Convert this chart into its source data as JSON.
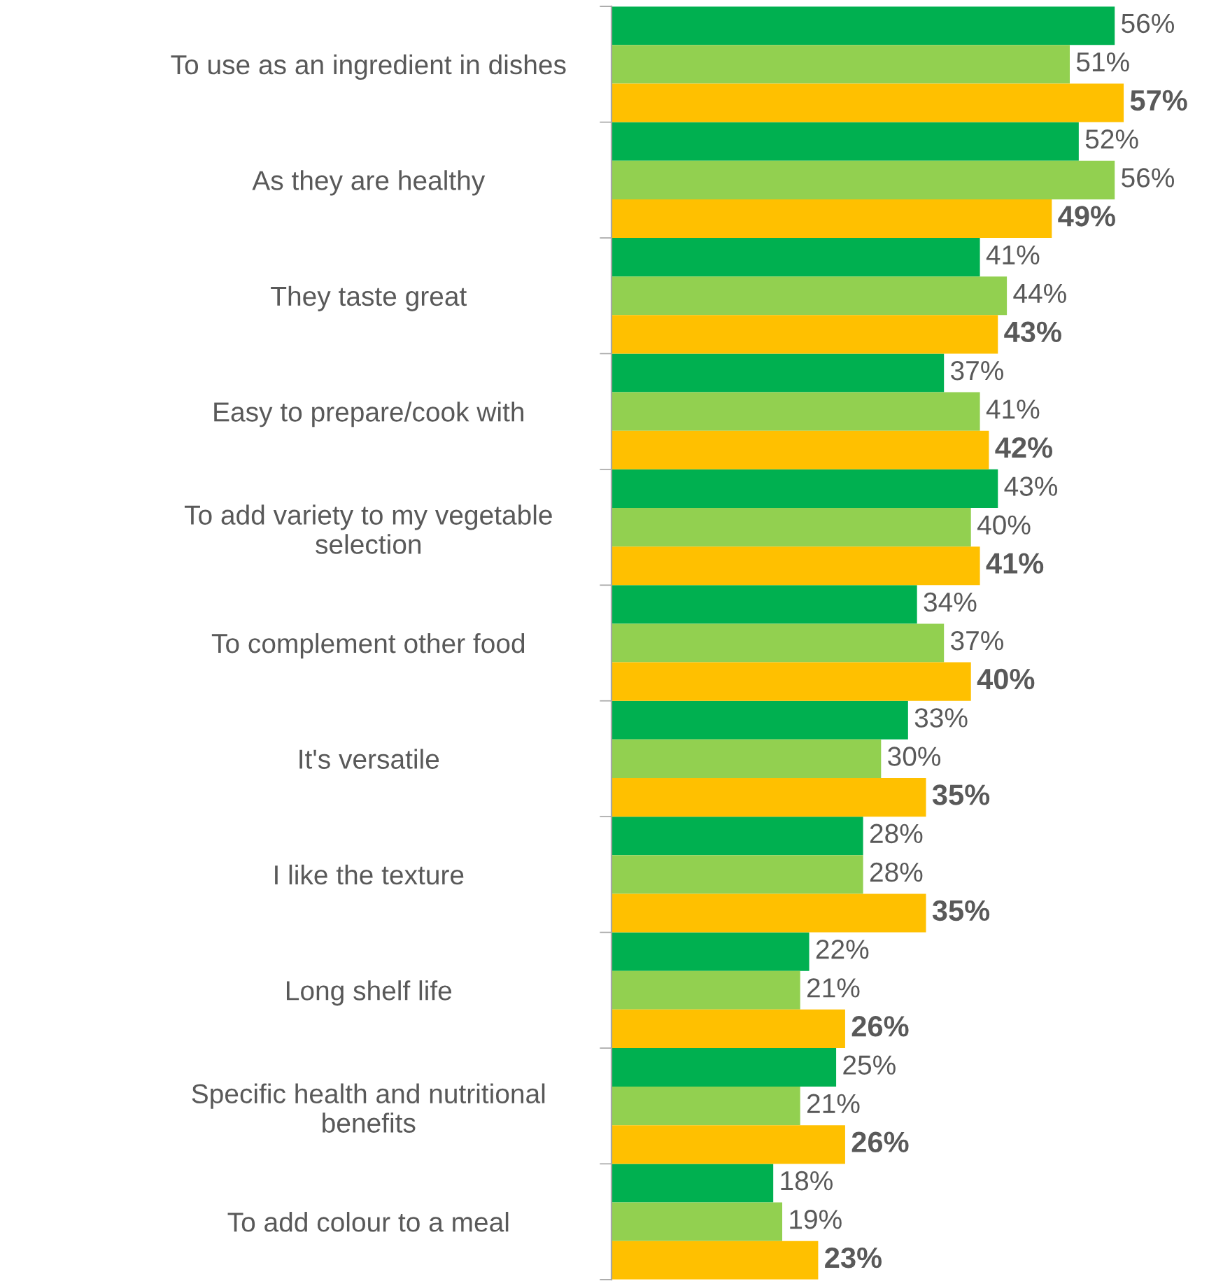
{
  "chart_data": {
    "type": "bar",
    "orientation": "horizontal",
    "grid": false,
    "legend": false,
    "categories": [
      "To use as an ingredient in dishes",
      "As they are healthy",
      "They taste great",
      "Easy to prepare/cook with",
      "To add variety to my vegetable\nselection",
      "To complement other food",
      "It's versatile",
      "I like the texture",
      "Long shelf life",
      "Specific health and nutritional\nbenefits",
      "To add colour to a meal"
    ],
    "series": [
      {
        "color": "#00b050",
        "values": [
          56,
          52,
          41,
          37,
          43,
          34,
          33,
          28,
          22,
          25,
          18
        ],
        "value_labels": [
          "56%",
          "52%",
          "41%",
          "37%",
          "43%",
          "34%",
          "33%",
          "28%",
          "22%",
          "25%",
          "18%"
        ]
      },
      {
        "color": "#92d050",
        "values": [
          51,
          56,
          44,
          41,
          40,
          37,
          30,
          28,
          21,
          21,
          19
        ],
        "value_labels": [
          "51%",
          "56%",
          "44%",
          "41%",
          "40%",
          "37%",
          "30%",
          "28%",
          "21%",
          "21%",
          "19%"
        ]
      },
      {
        "color": "#ffc000",
        "values": [
          57,
          49,
          43,
          42,
          41,
          40,
          35,
          35,
          26,
          26,
          23
        ],
        "value_labels": [
          "57%",
          "49%",
          "43%",
          "42%",
          "41%",
          "40%",
          "35%",
          "35%",
          "26%",
          "26%",
          "23%"
        ]
      }
    ]
  }
}
